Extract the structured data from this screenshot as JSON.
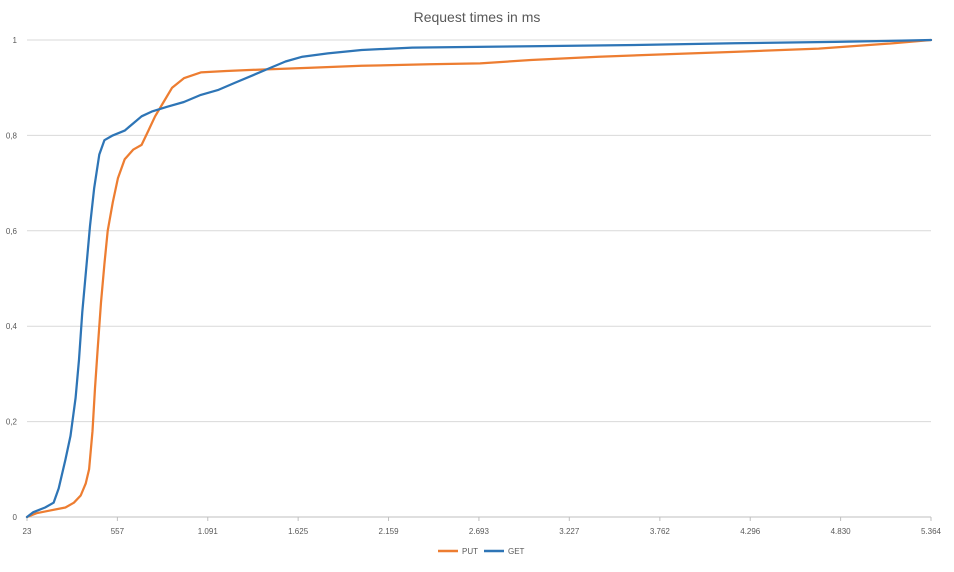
{
  "chart_data": {
    "type": "line",
    "title": "Request times in ms",
    "xlabel": "",
    "ylabel": "",
    "xlim": [
      23,
      5364
    ],
    "ylim": [
      0,
      1
    ],
    "grid": true,
    "legend_position": "bottom-center",
    "x_tick_values": [
      23,
      557,
      1091,
      1625,
      2159,
      2693,
      3227,
      3762,
      4296,
      4830,
      5364
    ],
    "x_tick_labels": [
      "23",
      "557",
      "1.091",
      "1.625",
      "2.159",
      "2.693",
      "3.227",
      "3.762",
      "4.296",
      "4.830",
      "5.364"
    ],
    "y_tick_values": [
      0,
      0.2,
      0.4,
      0.6,
      0.8,
      1
    ],
    "y_tick_labels": [
      "0",
      "0,2",
      "0,4",
      "0,6",
      "0,8",
      "1"
    ],
    "series": [
      {
        "name": "PUT",
        "color": "#ed7d31",
        "points": [
          [
            23,
            0.0
          ],
          [
            80,
            0.008
          ],
          [
            150,
            0.013
          ],
          [
            250,
            0.02
          ],
          [
            300,
            0.03
          ],
          [
            340,
            0.045
          ],
          [
            370,
            0.07
          ],
          [
            390,
            0.1
          ],
          [
            410,
            0.18
          ],
          [
            425,
            0.27
          ],
          [
            440,
            0.35
          ],
          [
            460,
            0.45
          ],
          [
            480,
            0.53
          ],
          [
            500,
            0.6
          ],
          [
            530,
            0.66
          ],
          [
            560,
            0.71
          ],
          [
            600,
            0.75
          ],
          [
            650,
            0.77
          ],
          [
            700,
            0.78
          ],
          [
            740,
            0.81
          ],
          [
            780,
            0.84
          ],
          [
            830,
            0.87
          ],
          [
            880,
            0.9
          ],
          [
            950,
            0.92
          ],
          [
            1050,
            0.932
          ],
          [
            1200,
            0.935
          ],
          [
            1400,
            0.938
          ],
          [
            1700,
            0.942
          ],
          [
            2000,
            0.946
          ],
          [
            2400,
            0.949
          ],
          [
            2700,
            0.951
          ],
          [
            3000,
            0.958
          ],
          [
            3400,
            0.965
          ],
          [
            3800,
            0.97
          ],
          [
            4200,
            0.975
          ],
          [
            4700,
            0.982
          ],
          [
            5100,
            0.992
          ],
          [
            5364,
            1.0
          ]
        ]
      },
      {
        "name": "GET",
        "color": "#2e75b6",
        "points": [
          [
            23,
            0.0
          ],
          [
            60,
            0.01
          ],
          [
            130,
            0.02
          ],
          [
            180,
            0.03
          ],
          [
            210,
            0.06
          ],
          [
            250,
            0.12
          ],
          [
            280,
            0.17
          ],
          [
            310,
            0.25
          ],
          [
            330,
            0.33
          ],
          [
            350,
            0.43
          ],
          [
            375,
            0.53
          ],
          [
            395,
            0.61
          ],
          [
            420,
            0.69
          ],
          [
            450,
            0.76
          ],
          [
            480,
            0.79
          ],
          [
            530,
            0.8
          ],
          [
            600,
            0.81
          ],
          [
            650,
            0.825
          ],
          [
            700,
            0.84
          ],
          [
            760,
            0.85
          ],
          [
            850,
            0.86
          ],
          [
            950,
            0.87
          ],
          [
            1050,
            0.885
          ],
          [
            1150,
            0.895
          ],
          [
            1250,
            0.91
          ],
          [
            1350,
            0.925
          ],
          [
            1450,
            0.94
          ],
          [
            1550,
            0.955
          ],
          [
            1650,
            0.965
          ],
          [
            1800,
            0.972
          ],
          [
            2000,
            0.979
          ],
          [
            2300,
            0.984
          ],
          [
            3000,
            0.987
          ],
          [
            3700,
            0.99
          ],
          [
            4200,
            0.993
          ],
          [
            4800,
            0.996
          ],
          [
            5364,
            1.0
          ]
        ]
      }
    ]
  }
}
